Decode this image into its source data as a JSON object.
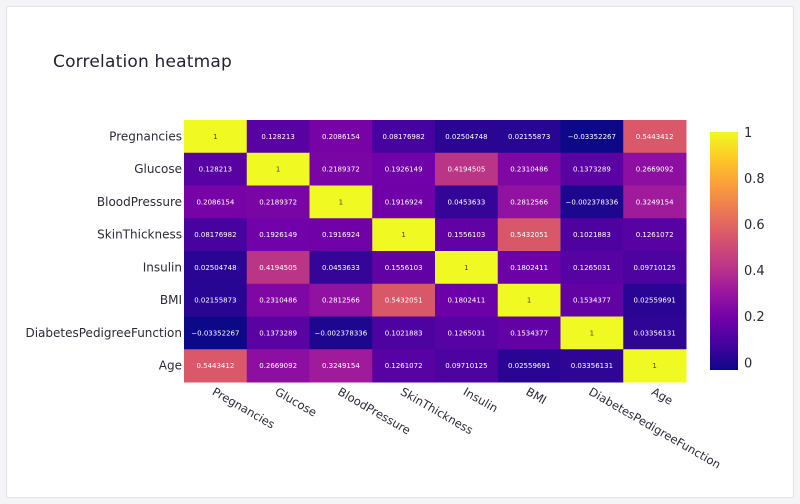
{
  "chart_data": {
    "type": "heatmap",
    "title": "Correlation heatmap",
    "variables": [
      "Pregnancies",
      "Glucose",
      "BloodPressure",
      "SkinThickness",
      "Insulin",
      "BMI",
      "DiabetesPedigreeFunction",
      "Age"
    ],
    "matrix": [
      [
        1,
        0.128213,
        0.2086154,
        0.08176982,
        0.02504748,
        0.02155873,
        -0.03352267,
        0.5443412
      ],
      [
        0.128213,
        1,
        0.2189372,
        0.1926149,
        0.4194505,
        0.2310486,
        0.1373289,
        0.2669092
      ],
      [
        0.2086154,
        0.2189372,
        1,
        0.1916924,
        0.0453633,
        0.2812566,
        -0.002378336,
        0.3249154
      ],
      [
        0.08176982,
        0.1926149,
        0.1916924,
        1,
        0.1556103,
        0.5432051,
        0.1021883,
        0.1261072
      ],
      [
        0.02504748,
        0.4194505,
        0.0453633,
        0.1556103,
        1,
        0.1802411,
        0.1265031,
        0.09710125
      ],
      [
        0.02155873,
        0.2310486,
        0.2812566,
        0.5432051,
        0.1802411,
        1,
        0.1534377,
        0.02559691
      ],
      [
        -0.03352267,
        0.1373289,
        -0.002378336,
        0.1021883,
        0.1265031,
        0.1534377,
        1,
        0.03356131
      ],
      [
        0.5443412,
        0.2669092,
        0.3249154,
        0.1261072,
        0.09710125,
        0.02559691,
        0.03356131,
        1
      ]
    ],
    "cell_labels": [
      [
        "1",
        "0.128213",
        "0.2086154",
        "0.08176982",
        "0.02504748",
        "0.02155873",
        "−0.03352267",
        "0.5443412"
      ],
      [
        "0.128213",
        "1",
        "0.2189372",
        "0.1926149",
        "0.4194505",
        "0.2310486",
        "0.1373289",
        "0.2669092"
      ],
      [
        "0.2086154",
        "0.2189372",
        "1",
        "0.1916924",
        "0.0453633",
        "0.2812566",
        "−0.002378336",
        "0.3249154"
      ],
      [
        "0.08176982",
        "0.1926149",
        "0.1916924",
        "1",
        "0.1556103",
        "0.5432051",
        "0.1021883",
        "0.1261072"
      ],
      [
        "0.02504748",
        "0.4194505",
        "0.0453633",
        "0.1556103",
        "1",
        "0.1802411",
        "0.1265031",
        "0.09710125"
      ],
      [
        "0.02155873",
        "0.2310486",
        "0.2812566",
        "0.5432051",
        "0.1802411",
        "1",
        "0.1534377",
        "0.02559691"
      ],
      [
        "−0.03352267",
        "0.1373289",
        "−0.002378336",
        "0.1021883",
        "0.1265031",
        "0.1534377",
        "1",
        "0.03356131"
      ],
      [
        "0.5443412",
        "0.2669092",
        "0.3249154",
        "0.1261072",
        "0.09710125",
        "0.02559691",
        "0.03356131",
        "1"
      ]
    ],
    "colorscale": "plasma",
    "zlim": [
      -0.03352267,
      1
    ],
    "colorbar_ticks": [
      0,
      0.2,
      0.4,
      0.6,
      0.8,
      1
    ],
    "colorbar_tick_labels": [
      "0",
      "0.2",
      "0.4",
      "0.6",
      "0.8",
      "1"
    ]
  }
}
